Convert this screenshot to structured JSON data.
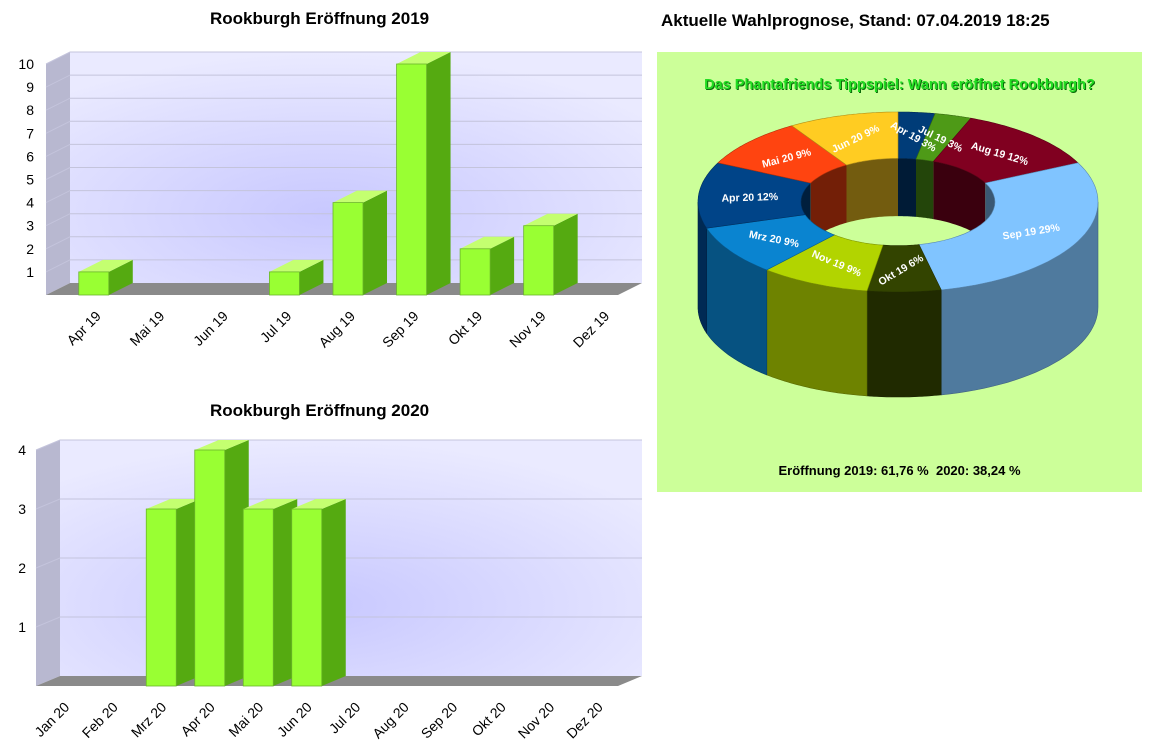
{
  "chart_data": [
    {
      "type": "bar",
      "title": "Rookburgh Eröffnung 2019",
      "categories": [
        "Apr 19",
        "Mai 19",
        "Jun 19",
        "Jul 19",
        "Aug 19",
        "Sep 19",
        "Okt 19",
        "Nov 19",
        "Dez 19"
      ],
      "values": [
        1,
        0,
        0,
        1,
        4,
        10,
        2,
        3,
        0
      ],
      "yticks": [
        1,
        2,
        3,
        4,
        5,
        6,
        7,
        8,
        9,
        10
      ],
      "ylim": [
        0,
        10
      ],
      "grid": true,
      "colors": {
        "bar": "#99ff33",
        "bar_side": "#55aa11",
        "plot_bg": "#dcdcff"
      }
    },
    {
      "type": "bar",
      "title": "Rookburgh Eröffnung 2020",
      "categories": [
        "Jan 20",
        "Feb 20",
        "Mrz 20",
        "Apr 20",
        "Mai 20",
        "Jun 20",
        "Jul 20",
        "Aug 20",
        "Sep 20",
        "Okt 20",
        "Nov 20",
        "Dez 20"
      ],
      "values": [
        0,
        0,
        3,
        4,
        3,
        3,
        0,
        0,
        0,
        0,
        0,
        0
      ],
      "yticks": [
        1,
        2,
        3,
        4
      ],
      "ylim": [
        0,
        4
      ],
      "grid": true,
      "colors": {
        "bar": "#99ff33",
        "bar_side": "#55aa11",
        "plot_bg": "#dcdcff"
      }
    },
    {
      "type": "pie",
      "title": "Aktuelle Wahlprognose, Stand: 07.04.2019 18:25",
      "subtitle": "Das Phantafriends Tippspiel: Wann eröffnet Rookburgh?",
      "slices": [
        {
          "label": "Apr 19",
          "value": 3,
          "text": "Apr 19 3%",
          "color": "#003c78"
        },
        {
          "label": "Jul 19",
          "value": 3,
          "text": "Jul 19 3%",
          "color": "#4e9a17"
        },
        {
          "label": "Aug 19",
          "value": 12,
          "text": "Aug 19 12%",
          "color": "#800020"
        },
        {
          "label": "Sep 19",
          "value": 29,
          "text": "Sep 19 29%",
          "color": "#80c4ff"
        },
        {
          "label": "Okt 19",
          "value": 6,
          "text": "Okt 19 6%",
          "color": "#334400"
        },
        {
          "label": "Nov 19",
          "value": 9,
          "text": "Nov 19 9%",
          "color": "#b2d400"
        },
        {
          "label": "Mrz 20",
          "value": 9,
          "text": "Mrz 20 9%",
          "color": "#0a84d0"
        },
        {
          "label": "Apr 20",
          "value": 12,
          "text": "Apr 20 12%",
          "color": "#004488"
        },
        {
          "label": "Mai 20",
          "value": 9,
          "text": "Mai 20 9%",
          "color": "#ff4410"
        },
        {
          "label": "Jun 20",
          "value": 9,
          "text": "Jun 20 9%",
          "color": "#ffcc22"
        }
      ],
      "footer": "Eröffnung 2019: 61,76 %  2020: 38,24 %",
      "colors": {
        "panel_bg": "#ccff99",
        "subtitle": "#22dd22"
      }
    }
  ]
}
